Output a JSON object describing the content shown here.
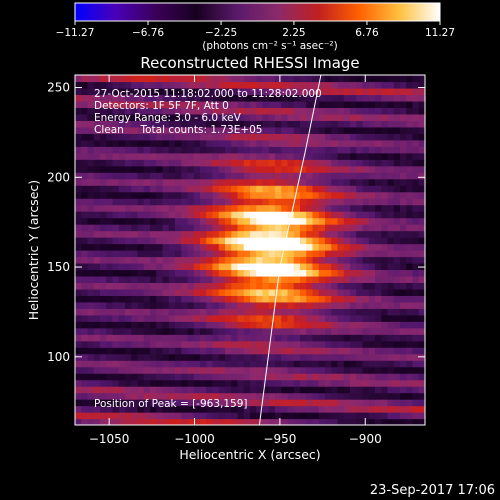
{
  "chart_data": {
    "type": "heatmap",
    "title": "Reconstructed RHESSI Image",
    "xlabel": "Heliocentric X (arcsec)",
    "ylabel": "Heliocentric Y (arcsec)",
    "xlim": [
      -1070,
      -865
    ],
    "ylim": [
      62,
      257
    ],
    "x_ticks": [
      -1050,
      -1000,
      -950,
      -900
    ],
    "y_ticks": [
      100,
      150,
      200,
      250
    ],
    "x_tick_labels": [
      "−1050",
      "−1000",
      "−950",
      "−900"
    ],
    "y_tick_labels": [
      "100",
      "150",
      "200",
      "250"
    ],
    "colorbar": {
      "range": [
        -11.27,
        11.27
      ],
      "tick_values": [
        -11.27,
        -6.76,
        -2.25,
        2.25,
        6.76,
        11.27
      ],
      "tick_labels": [
        "−11.27",
        "−6.76",
        "−2.25",
        "2.25",
        "6.76",
        "11.27"
      ],
      "unit_label": "(photons cm⁻² s⁻¹ asec⁻²)",
      "colors": [
        "#0000ff",
        "#4a00b8",
        "#3a0058",
        "#180020",
        "#5a1a6a",
        "#8a2a6a",
        "#c02020",
        "#ff6000",
        "#ffc040",
        "#ffffff"
      ]
    },
    "source": {
      "x": -955,
      "y": 162,
      "sigma_x": 27,
      "sigma_y": 30,
      "peak_position": [
        -963,
        159
      ]
    },
    "limb": [
      [
        -962,
        62
      ],
      [
        -950,
        150
      ],
      [
        -935,
        215
      ],
      [
        -926,
        257
      ]
    ],
    "annotations": [
      "27-Oct-2015 11:18:02.000 to 11:28:02.000",
      "Detectors: 1F 5F 7F, Att 0",
      "Energy Range: 3.0 - 6.0 keV",
      "Clean     Total counts: 1.73E+05",
      "Position of Peak = [-963,159]"
    ],
    "footer": "23-Sep-2017 17:06",
    "grid": false
  }
}
